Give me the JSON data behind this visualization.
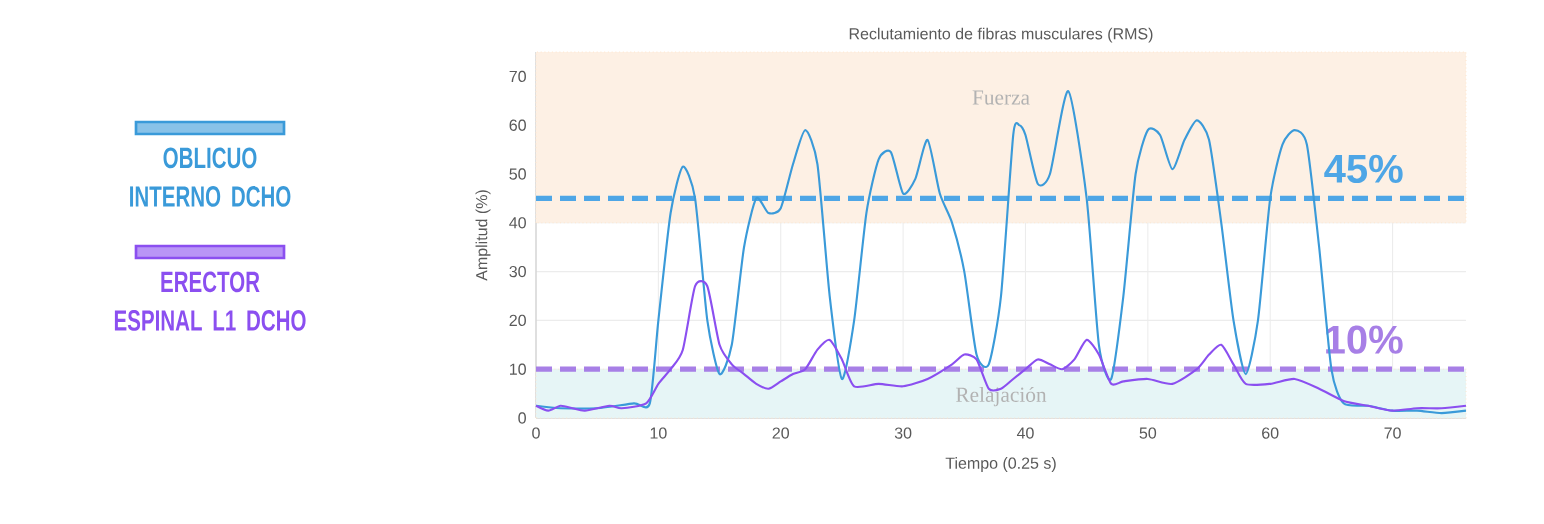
{
  "chart_data": {
    "type": "line",
    "title": "Reclutamiento de fibras musculares (RMS)",
    "xlabel": "Tiempo (0.25 s)",
    "ylabel": "Amplitud (%)",
    "xlim": [
      0,
      76
    ],
    "ylim": [
      0,
      75
    ],
    "xticks": [
      0,
      10,
      20,
      30,
      40,
      50,
      60,
      70
    ],
    "yticks": [
      0,
      10,
      20,
      30,
      40,
      50,
      60,
      70
    ],
    "grid": true,
    "legend": "left",
    "series": [
      {
        "name": "OBLICUO INTERNO DCHO",
        "color": "#3a9ad9",
        "x": [
          0,
          2,
          5,
          8,
          9.3,
          10,
          11,
          12,
          13,
          14,
          15,
          16,
          17,
          18,
          19,
          20,
          21,
          22,
          23,
          24,
          25,
          26,
          27,
          28,
          29,
          30,
          31,
          32,
          33,
          34,
          35,
          36,
          37,
          38,
          39,
          39.5,
          40,
          41,
          42,
          43.5,
          45,
          46,
          47,
          48,
          49,
          50,
          51,
          52,
          53,
          54,
          55,
          56,
          57,
          58,
          59,
          60,
          61,
          62,
          63,
          64,
          65,
          66,
          68,
          70,
          72,
          74,
          76
        ],
        "values": [
          2.5,
          2,
          2,
          3,
          3,
          20,
          42,
          51.5,
          45,
          20,
          9,
          15,
          35,
          45,
          42,
          43,
          52,
          59,
          52,
          25,
          8,
          20,
          42,
          53,
          54.5,
          46,
          49,
          57,
          46,
          40,
          30,
          13,
          11,
          25,
          58,
          60,
          58,
          48,
          50,
          67,
          45,
          15,
          8,
          25,
          50,
          59,
          58,
          51,
          57,
          61,
          57,
          40,
          20,
          9,
          20,
          45,
          56,
          59,
          56,
          35,
          10,
          3,
          2.5,
          1.5,
          1.5,
          1,
          1.5
        ]
      },
      {
        "name": "ERECTOR ESPINAL L1 DCHO",
        "color": "#8b4ff0",
        "x": [
          0,
          1,
          2,
          3,
          4,
          6,
          7,
          9,
          10,
          11,
          12,
          13,
          14,
          15,
          16,
          17,
          18,
          19,
          20,
          21,
          22,
          23,
          24,
          25,
          26,
          28,
          30,
          32,
          34,
          35,
          36,
          37,
          38,
          39,
          40,
          41,
          42,
          43,
          44,
          45,
          46,
          47,
          48,
          50,
          52,
          54,
          55,
          56,
          57,
          58,
          60,
          62,
          64,
          66,
          68,
          70,
          72,
          74,
          76
        ],
        "values": [
          2.5,
          1.5,
          2.5,
          2,
          1.5,
          2.5,
          2,
          3,
          7,
          10,
          14,
          27,
          27,
          15,
          11,
          9,
          7,
          6,
          7.5,
          9,
          10,
          14,
          16,
          12,
          6.5,
          7,
          6.5,
          8,
          11,
          13,
          12,
          6,
          6,
          8,
          10,
          12,
          11,
          10,
          12,
          16,
          13,
          7,
          7.5,
          8,
          7,
          10,
          13,
          15,
          11,
          7,
          7,
          8,
          6,
          3.5,
          2.5,
          1.5,
          2,
          2,
          2.5
        ]
      }
    ],
    "ref_lines": [
      {
        "axis": "y",
        "value": 45,
        "label": "45%",
        "color": "#4ea6e6",
        "line_style": "dashed"
      },
      {
        "axis": "y",
        "value": 10,
        "label": "10%",
        "color": "#a77fe6",
        "line_style": "dashed"
      }
    ],
    "bands": [
      {
        "axis": "y",
        "from": 40,
        "to": 75,
        "label": "Fuerza",
        "color": "#fdf0e4"
      },
      {
        "axis": "y",
        "from": 0,
        "to": 10,
        "label": "Relajación",
        "color": "#e6f5f6"
      }
    ]
  }
}
